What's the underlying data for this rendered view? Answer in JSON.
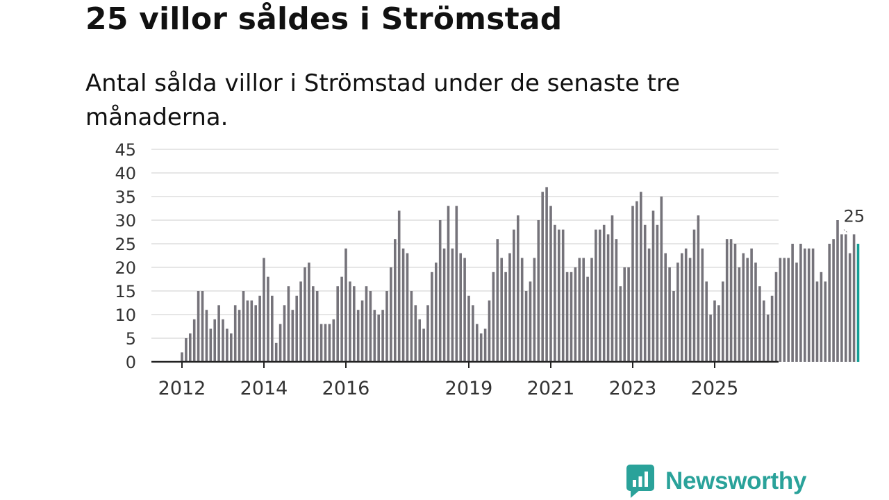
{
  "header": {
    "title": "25 villor såldes i Strömstad",
    "subtitle": "Antal sålda villor i Strömstad under de senaste tre månaderna."
  },
  "branding": {
    "name": "Newsworthy",
    "color": "#2aa29a"
  },
  "chart_data": {
    "type": "bar",
    "title": "25 villor såldes i Strömstad",
    "xlabel": "",
    "ylabel": "",
    "ylim": [
      0,
      45
    ],
    "yticks": [
      0,
      5,
      10,
      15,
      20,
      25,
      30,
      35,
      40,
      45
    ],
    "grid": true,
    "x_start": "2012-01",
    "x_ticks": [
      {
        "label": "2012",
        "index": 0
      },
      {
        "label": "2014",
        "index": 20
      },
      {
        "label": "2016",
        "index": 40
      },
      {
        "label": "2019",
        "index": 70
      },
      {
        "label": "2021",
        "index": 90
      },
      {
        "label": "2023",
        "index": 110
      },
      {
        "label": "2025",
        "index": 130
      }
    ],
    "series": [
      {
        "name": "Antal sålda villor",
        "color": "#75737a",
        "highlight_color": "#149e95",
        "values": [
          2,
          5,
          6,
          9,
          15,
          15,
          11,
          7,
          9,
          12,
          9,
          7,
          6,
          12,
          11,
          15,
          13,
          13,
          12,
          14,
          22,
          18,
          14,
          4,
          8,
          12,
          16,
          11,
          14,
          17,
          20,
          21,
          16,
          15,
          8,
          8,
          8,
          9,
          16,
          18,
          24,
          17,
          16,
          11,
          13,
          16,
          15,
          11,
          10,
          11,
          15,
          20,
          26,
          32,
          24,
          23,
          15,
          12,
          9,
          7,
          12,
          19,
          21,
          30,
          24,
          33,
          24,
          33,
          23,
          22,
          14,
          12,
          8,
          6,
          7,
          13,
          19,
          26,
          22,
          19,
          23,
          28,
          31,
          22,
          15,
          17,
          22,
          30,
          36,
          37,
          33,
          29,
          28,
          28,
          19,
          19,
          20,
          22,
          22,
          18,
          22,
          28,
          28,
          29,
          27,
          31,
          26,
          16,
          20,
          20,
          33,
          34,
          36,
          29,
          24,
          32,
          29,
          35,
          23,
          20,
          15,
          21,
          23,
          24,
          22,
          28,
          31,
          24,
          17,
          10,
          13,
          12,
          17,
          26,
          26,
          25,
          20,
          23,
          22,
          24,
          21,
          16,
          13,
          10,
          14,
          19,
          22,
          22,
          22,
          25,
          21,
          25,
          24,
          24,
          24,
          17,
          19,
          17,
          25,
          26,
          30,
          27,
          27,
          23,
          27,
          25
        ]
      }
    ],
    "annotation": {
      "text": "25",
      "index": 164
    }
  }
}
